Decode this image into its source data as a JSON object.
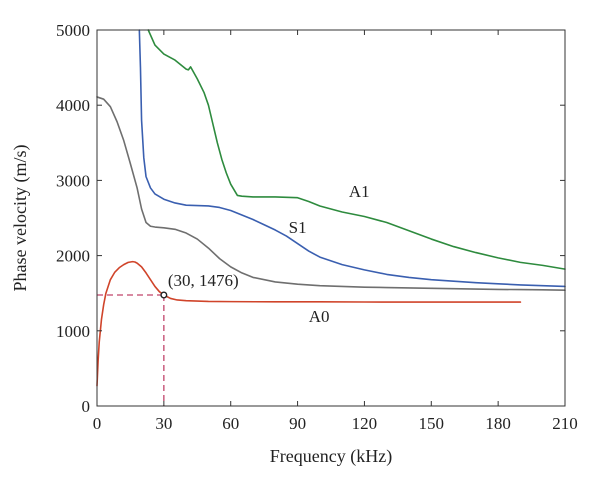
{
  "chart_data": {
    "type": "line",
    "title": "",
    "xlabel": "Frequency (kHz)",
    "ylabel": "Phase velocity (m/s)",
    "xlim": [
      0,
      210
    ],
    "ylim": [
      0,
      5000
    ],
    "xticks": [
      0,
      30,
      60,
      90,
      120,
      150,
      180,
      210
    ],
    "yticks": [
      0,
      1000,
      2000,
      3000,
      4000,
      5000
    ],
    "xtick_labels": [
      "0",
      "30",
      "60",
      "90",
      "120",
      "150",
      "180",
      "210"
    ],
    "ytick_labels": [
      "0",
      "1000",
      "2000",
      "3000",
      "4000",
      "5000"
    ],
    "grid": false,
    "legend": "none",
    "series": [
      {
        "name": "A1",
        "color": "#2e8b3e",
        "x": [
          23,
          26,
          30,
          35,
          40,
          41,
          42,
          45,
          48,
          50,
          52,
          54,
          56,
          58,
          60,
          62,
          63,
          65,
          70,
          80,
          90,
          95,
          100,
          110,
          120,
          130,
          140,
          150,
          160,
          170,
          180,
          190,
          200,
          210
        ],
        "y": [
          5000,
          4800,
          4680,
          4600,
          4480,
          4470,
          4510,
          4350,
          4170,
          4000,
          3750,
          3500,
          3280,
          3100,
          2950,
          2850,
          2800,
          2790,
          2780,
          2780,
          2770,
          2720,
          2660,
          2580,
          2520,
          2440,
          2330,
          2220,
          2120,
          2040,
          1970,
          1910,
          1870,
          1820
        ]
      },
      {
        "name": "S1",
        "color": "#3a5fb0",
        "x": [
          19,
          19.5,
          20,
          21,
          22,
          24,
          26,
          30,
          35,
          40,
          50,
          55,
          60,
          65,
          70,
          75,
          80,
          85,
          90,
          95,
          100,
          110,
          120,
          130,
          140,
          150,
          160,
          170,
          180,
          190,
          200,
          210
        ],
        "y": [
          5000,
          4500,
          3800,
          3300,
          3050,
          2900,
          2820,
          2750,
          2700,
          2670,
          2660,
          2640,
          2600,
          2540,
          2480,
          2410,
          2340,
          2260,
          2160,
          2060,
          1980,
          1880,
          1810,
          1750,
          1710,
          1680,
          1660,
          1640,
          1625,
          1610,
          1600,
          1590
        ]
      },
      {
        "name": "",
        "color": "#6f6f6f",
        "x": [
          0,
          3,
          6,
          9,
          12,
          15,
          18,
          20,
          22,
          24,
          26,
          30,
          35,
          40,
          45,
          50,
          55,
          60,
          65,
          70,
          80,
          90,
          100,
          110,
          120,
          130,
          140,
          150,
          160,
          170,
          180,
          190,
          200,
          210
        ],
        "y": [
          4110,
          4080,
          3980,
          3780,
          3530,
          3220,
          2900,
          2620,
          2440,
          2390,
          2380,
          2370,
          2350,
          2300,
          2220,
          2100,
          1960,
          1850,
          1770,
          1710,
          1650,
          1620,
          1600,
          1590,
          1580,
          1575,
          1570,
          1565,
          1560,
          1555,
          1550,
          1548,
          1545,
          1540
        ]
      },
      {
        "name": "A0",
        "color": "#d0442a",
        "x": [
          0,
          0.5,
          1,
          2,
          3,
          4,
          6,
          8,
          10,
          12,
          14,
          16,
          17,
          18,
          20,
          22,
          24,
          26,
          28,
          30,
          33,
          36,
          40,
          45,
          50,
          60,
          80,
          100,
          120,
          140,
          160,
          180,
          190
        ],
        "y": [
          270,
          600,
          850,
          1150,
          1350,
          1500,
          1680,
          1780,
          1840,
          1880,
          1910,
          1920,
          1915,
          1900,
          1850,
          1770,
          1680,
          1590,
          1520,
          1476,
          1430,
          1410,
          1400,
          1395,
          1390,
          1388,
          1385,
          1385,
          1383,
          1382,
          1382,
          1382,
          1382
        ]
      }
    ],
    "reference_point": {
      "x": 30,
      "y": 1476,
      "label": "(30, 1476)"
    },
    "annotations": [
      {
        "text": "A1",
        "x": 113,
        "y": 2780
      },
      {
        "text": "S1",
        "x": 86,
        "y": 2300
      },
      {
        "text": "A0",
        "x": 95,
        "y": 1120
      }
    ]
  }
}
